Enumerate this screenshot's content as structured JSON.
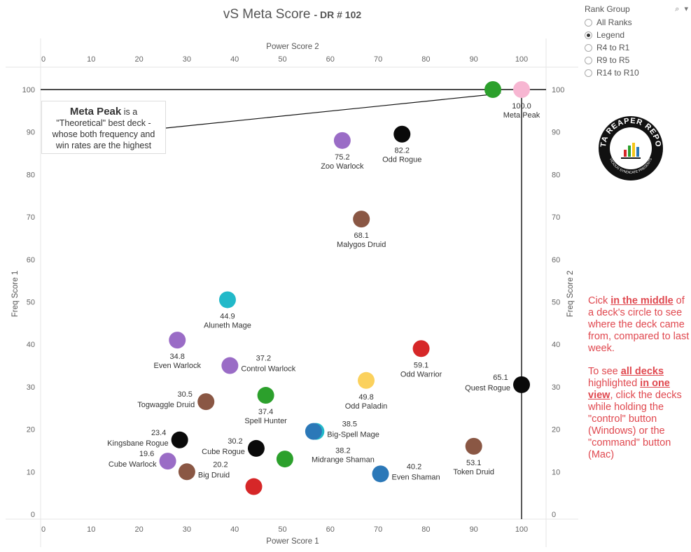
{
  "title": {
    "main": "vS Meta Score",
    "sub": "- DR # 102"
  },
  "legend": {
    "title": "Rank Group",
    "tools": "⌕ ▾",
    "options": [
      {
        "label": "All Ranks",
        "selected": false
      },
      {
        "label": "Legend",
        "selected": true
      },
      {
        "label": "R4 to R1",
        "selected": false
      },
      {
        "label": "R9 to R5",
        "selected": false
      },
      {
        "label": "R14 to R10",
        "selected": false
      }
    ]
  },
  "logo": {
    "text": "DATA REAPER REPORT",
    "sub": "VICIOUS SYNDICATE PRESENTS"
  },
  "callout": {
    "bold": "Meta Peak",
    "text1": " is a",
    "text2": "\"Theoretical\" best deck -",
    "text3": "whose both frequency and",
    "text4": "win rates are the highest"
  },
  "note": {
    "p1a": "Cick ",
    "p1b": "in the middle",
    "p1c": " of a deck's circle to see where the deck came from, compared to last week.",
    "p2a": "To see ",
    "p2b": "all decks",
    "p2c": " highlighted ",
    "p2d": "in one view",
    "p2e": ", click the decks while holding the \"control\" button (Windows) or the \"command\" button (Mac)"
  },
  "chart_data": {
    "type": "scatter",
    "xlabel_bottom": "Power Score 1",
    "xlabel_top": "Power Score 2",
    "ylabel_left": "Freq Score 1",
    "ylabel_right": "Freq Score 2",
    "xlim": [
      0,
      100
    ],
    "ylim": [
      0,
      100
    ],
    "x_ticks": [
      0,
      10,
      20,
      30,
      40,
      50,
      60,
      70,
      80,
      90,
      100
    ],
    "y_ticks": [
      0,
      10,
      20,
      30,
      40,
      50,
      60,
      70,
      80,
      90,
      100
    ],
    "reference_lines": {
      "x": 100,
      "y": 100
    },
    "colors": {
      "Warlock": "#9a6cc6",
      "Rogue": "#0a0a0a",
      "Druid": "#8a5744",
      "Mage": "#22b9c9",
      "Hunter": "#2ca02c",
      "Paladin": "#fbd15d",
      "Warrior": "#d62728",
      "Shaman": "#2b78b8",
      "Meta": "#f7b6d2"
    },
    "points": [
      {
        "name": "Meta Peak",
        "score": "100.0",
        "x": 100,
        "y": 100,
        "cls": "Meta",
        "label": "below"
      },
      {
        "name": "",
        "score": "",
        "x": 94,
        "y": 100,
        "cls": "Hunter",
        "label": "none"
      },
      {
        "name": "Zoo Warlock",
        "score": "75.2",
        "x": 62.5,
        "y": 88,
        "cls": "Warlock",
        "label": "below"
      },
      {
        "name": "Odd Rogue",
        "score": "82.2",
        "x": 75,
        "y": 89.5,
        "cls": "Rogue",
        "label": "below"
      },
      {
        "name": "Malygos Druid",
        "score": "68.1",
        "x": 66.5,
        "y": 69.5,
        "cls": "Druid",
        "label": "below"
      },
      {
        "name": "Aluneth Mage",
        "score": "44.9",
        "x": 38.5,
        "y": 50.5,
        "cls": "Mage",
        "label": "below"
      },
      {
        "name": "Even Warlock",
        "score": "34.8",
        "x": 28,
        "y": 41,
        "cls": "Warlock",
        "label": "below"
      },
      {
        "name": "Control Warlock",
        "score": "37.2",
        "x": 39,
        "y": 35,
        "cls": "Warlock",
        "label": "right"
      },
      {
        "name": "Odd Warrior",
        "score": "59.1",
        "x": 79,
        "y": 39,
        "cls": "Warrior",
        "label": "below"
      },
      {
        "name": "Togwaggle Druid",
        "score": "30.5",
        "x": 34,
        "y": 26.5,
        "cls": "Druid",
        "label": "left"
      },
      {
        "name": "Spell Hunter",
        "score": "37.4",
        "x": 46.5,
        "y": 28,
        "cls": "Hunter",
        "label": "below"
      },
      {
        "name": "Odd Paladin",
        "score": "49.8",
        "x": 67.5,
        "y": 31.5,
        "cls": "Paladin",
        "label": "below"
      },
      {
        "name": "Quest Rogue",
        "score": "65.1",
        "x": 100,
        "y": 30.5,
        "cls": "Rogue",
        "label": "left"
      },
      {
        "name": "Kingsbane Rogue",
        "score": "23.4",
        "x": 28.5,
        "y": 17.5,
        "cls": "Rogue",
        "label": "left"
      },
      {
        "name": "Cube Rogue",
        "score": "30.2",
        "x": 44.5,
        "y": 15.5,
        "cls": "Rogue",
        "label": "left"
      },
      {
        "name": "Big-Spell Mage",
        "score": "38.5",
        "x": 57,
        "y": 19.5,
        "cls": "Mage",
        "label": "right"
      },
      {
        "name": "Midrange Shaman",
        "score": "38.2",
        "x": 56.5,
        "y": 19.5,
        "cls": "Shaman",
        "label": "right2"
      },
      {
        "name": "",
        "score": "",
        "x": 50.5,
        "y": 13,
        "cls": "Hunter",
        "label": "none"
      },
      {
        "name": "Cube Warlock",
        "score": "19.6",
        "x": 26,
        "y": 12.5,
        "cls": "Warlock",
        "label": "left"
      },
      {
        "name": "Big Druid",
        "score": "20.2",
        "x": 30,
        "y": 10,
        "cls": "Druid",
        "label": "right"
      },
      {
        "name": "",
        "score": "",
        "x": 44,
        "y": 6.5,
        "cls": "Warrior",
        "label": "none"
      },
      {
        "name": "Even Shaman",
        "score": "40.2",
        "x": 70.5,
        "y": 9.5,
        "cls": "Shaman",
        "label": "right"
      },
      {
        "name": "Token Druid",
        "score": "53.1",
        "x": 90,
        "y": 16,
        "cls": "Druid",
        "label": "below"
      }
    ]
  }
}
